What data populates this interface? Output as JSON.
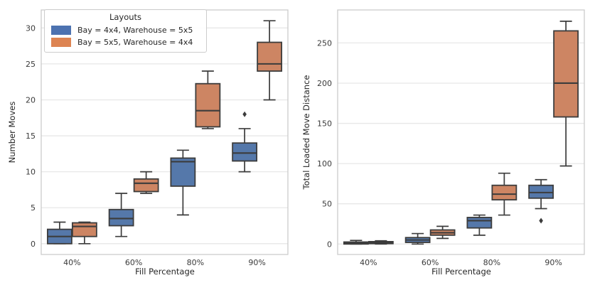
{
  "figure": {
    "background": "#ffffff",
    "grid_color": "#e7e7e7",
    "spine_color": "#cbcbcb",
    "box_edge_color": "#3c3c3c",
    "tick_color": "#3a3a3a",
    "label_color": "#262626"
  },
  "legend": {
    "title": "Layouts",
    "position": "upper left of first subplot",
    "entries": [
      {
        "label": "Bay = 4x4, Warehouse = 5x5",
        "color": "#4C72B0"
      },
      {
        "label": "Bay = 5x5, Warehouse = 4x4",
        "color": "#DD8452"
      }
    ]
  },
  "chart_data": [
    {
      "type": "boxplot",
      "title": "",
      "xlabel": "Fill Percentage",
      "ylabel": "Number Moves",
      "categories": [
        "40%",
        "60%",
        "80%",
        "90%"
      ],
      "yticks": [
        0,
        5,
        10,
        15,
        20,
        25,
        30
      ],
      "ylim": [
        -1.5,
        32.5
      ],
      "grid": true,
      "series": [
        {
          "name": "Bay = 4x4, Warehouse = 5x5",
          "color": "#5578aa",
          "boxes": [
            {
              "whislo": 0,
              "q1": 0,
              "med": 1,
              "q3": 2,
              "whishi": 3,
              "outliers": []
            },
            {
              "whislo": 1,
              "q1": 2.5,
              "med": 3.5,
              "q3": 4.75,
              "whishi": 7,
              "outliers": []
            },
            {
              "whislo": 4,
              "q1": 8,
              "med": 11.4,
              "q3": 11.9,
              "whishi": 13,
              "outliers": []
            },
            {
              "whislo": 10,
              "q1": 11.5,
              "med": 12.6,
              "q3": 14,
              "whishi": 16,
              "outliers": [
                18
              ]
            }
          ]
        },
        {
          "name": "Bay = 5x5, Warehouse = 4x4",
          "color": "#cd8563",
          "boxes": [
            {
              "whislo": 0,
              "q1": 1,
              "med": 2.4,
              "q3": 2.9,
              "whishi": 3,
              "outliers": []
            },
            {
              "whislo": 7,
              "q1": 7.25,
              "med": 8.4,
              "q3": 9,
              "whishi": 10,
              "outliers": []
            },
            {
              "whislo": 16,
              "q1": 16.25,
              "med": 18.5,
              "q3": 22.25,
              "whishi": 24,
              "outliers": []
            },
            {
              "whislo": 20,
              "q1": 24,
              "med": 25,
              "q3": 28,
              "whishi": 31,
              "outliers": []
            }
          ]
        }
      ]
    },
    {
      "type": "boxplot",
      "title": "",
      "xlabel": "Fill Percentage",
      "ylabel": "Total Loaded Move Distance",
      "categories": [
        "40%",
        "60%",
        "80%",
        "90%"
      ],
      "yticks": [
        0,
        50,
        100,
        150,
        200,
        250
      ],
      "ylim": [
        -13,
        291
      ],
      "grid": true,
      "series": [
        {
          "name": "Bay = 4x4, Warehouse = 5x5",
          "color": "#5578aa",
          "boxes": [
            {
              "whislo": 0,
              "q1": 0,
              "med": 1,
              "q3": 2.5,
              "whishi": 4.5,
              "outliers": []
            },
            {
              "whislo": 0,
              "q1": 2,
              "med": 5,
              "q3": 8,
              "whishi": 13,
              "outliers": []
            },
            {
              "whislo": 11,
              "q1": 20,
              "med": 29,
              "q3": 33,
              "whishi": 36,
              "outliers": []
            },
            {
              "whislo": 44,
              "q1": 57,
              "med": 64,
              "q3": 73,
              "whishi": 80,
              "outliers": [
                29
              ]
            }
          ]
        },
        {
          "name": "Bay = 5x5, Warehouse = 4x4",
          "color": "#cd8563",
          "boxes": [
            {
              "whislo": 0,
              "q1": 0.5,
              "med": 1.7,
              "q3": 3,
              "whishi": 4,
              "outliers": []
            },
            {
              "whislo": 7,
              "q1": 11,
              "med": 14,
              "q3": 17.5,
              "whishi": 22,
              "outliers": []
            },
            {
              "whislo": 36,
              "q1": 55,
              "med": 62,
              "q3": 73,
              "whishi": 88,
              "outliers": []
            },
            {
              "whislo": 97,
              "q1": 158,
              "med": 200,
              "q3": 265,
              "whishi": 277,
              "outliers": []
            }
          ]
        }
      ]
    }
  ]
}
